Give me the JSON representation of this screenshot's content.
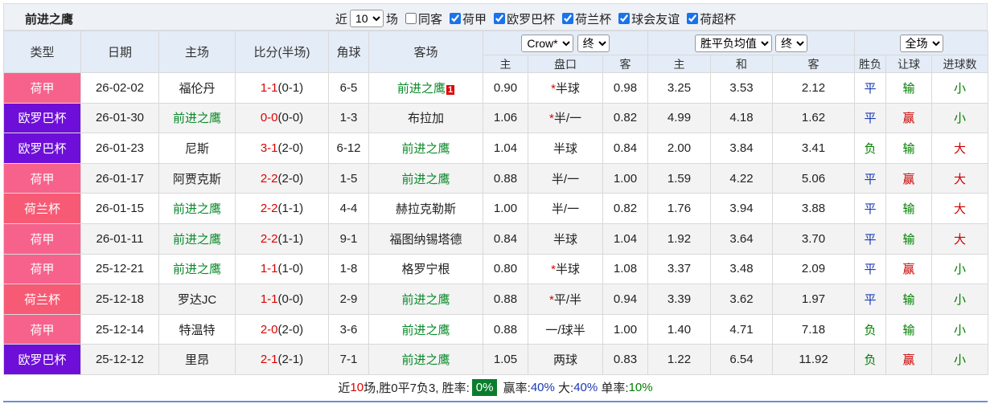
{
  "header": {
    "title": "前进之鹰"
  },
  "filters": {
    "count_prefix": "近",
    "count": "10",
    "count_suffix": "场",
    "checks": [
      {
        "label": "同客",
        "checked": false
      },
      {
        "label": "荷甲",
        "checked": true
      },
      {
        "label": "欧罗巴杯",
        "checked": true
      },
      {
        "label": "荷兰杯",
        "checked": true
      },
      {
        "label": "球会友谊",
        "checked": true
      },
      {
        "label": "荷超杯",
        "checked": true
      }
    ]
  },
  "table": {
    "columns": [
      "类型",
      "日期",
      "主场",
      "比分(半场)",
      "角球",
      "客场"
    ],
    "controls": {
      "company": "Crow*",
      "company_stage": "终",
      "average": "胜平负均值",
      "average_stage": "终",
      "scope": "全场"
    },
    "subcolumns": [
      "主",
      "盘口",
      "客",
      "主",
      "和",
      "客",
      "胜负",
      "让球",
      "进球数"
    ],
    "result_colors": {
      "平": "#1a3ab5",
      "负": "#008000",
      "胜": "#cc0000",
      "赢": "#cc0000",
      "输": "#008000",
      "大": "#cc0000",
      "小": "#008000"
    },
    "rows": [
      {
        "type": "荷甲",
        "color": "#f7628c",
        "date": "26-02-02",
        "home": "福伦丹",
        "score": "1-1",
        "half": "(0-1)",
        "corners": "6-5",
        "away": "前进之鹰",
        "red_card": "1",
        "odds_home": "0.90",
        "star": "*",
        "handicap": "半球",
        "odds_away": "0.98",
        "win": "3.25",
        "draw": "3.53",
        "lose": "2.12",
        "result": "平",
        "handicap_result": "输",
        "goals_result": "小"
      },
      {
        "type": "欧罗巴杯",
        "color": "#6d0fd8",
        "date": "26-01-30",
        "home": "前进之鹰",
        "score": "0-0",
        "half": "(0-0)",
        "corners": "1-3",
        "away": "布拉加",
        "odds_home": "1.06",
        "star": "*",
        "handicap": "半/一",
        "odds_away": "0.82",
        "win": "4.99",
        "draw": "4.18",
        "lose": "1.62",
        "result": "平",
        "handicap_result": "赢",
        "goals_result": "小"
      },
      {
        "type": "欧罗巴杯",
        "color": "#6d0fd8",
        "date": "26-01-23",
        "home": "尼斯",
        "score": "3-1",
        "half": "(2-0)",
        "corners": "6-12",
        "away": "前进之鹰",
        "odds_home": "1.04",
        "handicap": "半球",
        "odds_away": "0.84",
        "win": "2.00",
        "draw": "3.84",
        "lose": "3.41",
        "result": "负",
        "handicap_result": "输",
        "goals_result": "大"
      },
      {
        "type": "荷甲",
        "color": "#f7628c",
        "date": "26-01-17",
        "home": "阿贾克斯",
        "score": "2-2",
        "half": "(2-0)",
        "corners": "1-5",
        "away": "前进之鹰",
        "odds_home": "0.88",
        "handicap": "半/一",
        "odds_away": "1.00",
        "win": "1.59",
        "draw": "4.22",
        "lose": "5.06",
        "result": "平",
        "handicap_result": "赢",
        "goals_result": "大"
      },
      {
        "type": "荷兰杯",
        "color": "#f75a74",
        "date": "26-01-15",
        "home": "前进之鹰",
        "score": "2-2",
        "half": "(1-1)",
        "corners": "4-4",
        "away": "赫拉克勒斯",
        "odds_home": "1.00",
        "handicap": "半/一",
        "odds_away": "0.82",
        "win": "1.76",
        "draw": "3.94",
        "lose": "3.88",
        "result": "平",
        "handicap_result": "输",
        "goals_result": "大"
      },
      {
        "type": "荷甲",
        "color": "#f7628c",
        "date": "26-01-11",
        "home": "前进之鹰",
        "score": "2-2",
        "half": "(1-1)",
        "corners": "9-1",
        "away": "福图纳锡塔德",
        "odds_home": "0.84",
        "handicap": "半球",
        "odds_away": "1.04",
        "win": "1.92",
        "draw": "3.64",
        "lose": "3.70",
        "result": "平",
        "handicap_result": "输",
        "goals_result": "大"
      },
      {
        "type": "荷甲",
        "color": "#f7628c",
        "date": "25-12-21",
        "home": "前进之鹰",
        "score": "1-1",
        "half": "(1-0)",
        "corners": "1-8",
        "away": "格罗宁根",
        "odds_home": "0.80",
        "star": "*",
        "handicap": "半球",
        "odds_away": "1.08",
        "win": "3.37",
        "draw": "3.48",
        "lose": "2.09",
        "result": "平",
        "handicap_result": "赢",
        "goals_result": "小"
      },
      {
        "type": "荷兰杯",
        "color": "#f75a74",
        "date": "25-12-18",
        "home": "罗达JC",
        "score": "1-1",
        "half": "(0-0)",
        "corners": "2-9",
        "away": "前进之鹰",
        "odds_home": "0.88",
        "star": "*",
        "handicap": "平/半",
        "odds_away": "0.94",
        "win": "3.39",
        "draw": "3.62",
        "lose": "1.97",
        "result": "平",
        "handicap_result": "输",
        "goals_result": "小"
      },
      {
        "type": "荷甲",
        "color": "#f7628c",
        "date": "25-12-14",
        "home": "特温特",
        "score": "2-0",
        "half": "(2-0)",
        "corners": "3-6",
        "away": "前进之鹰",
        "odds_home": "0.88",
        "handicap": "一/球半",
        "odds_away": "1.00",
        "win": "1.40",
        "draw": "4.71",
        "lose": "7.18",
        "result": "负",
        "handicap_result": "输",
        "goals_result": "小"
      },
      {
        "type": "欧罗巴杯",
        "color": "#6d0fd8",
        "date": "25-12-12",
        "home": "里昂",
        "score": "2-1",
        "half": "(2-1)",
        "corners": "7-1",
        "away": "前进之鹰",
        "odds_home": "1.05",
        "handicap": "两球",
        "odds_away": "0.83",
        "win": "1.22",
        "draw": "6.54",
        "lose": "11.92",
        "result": "负",
        "handicap_result": "赢",
        "goals_result": "小"
      }
    ]
  },
  "footer": [
    {
      "text": "近"
    },
    {
      "text": "10",
      "color": "#dd0000"
    },
    {
      "text": "场,胜0平7负3, 胜率:"
    },
    {
      "text": "0%",
      "box": "#0a7d2c"
    },
    {
      "text": " 赢率:"
    },
    {
      "text": "40%",
      "color": "#1a3ab5"
    },
    {
      "text": " 大:"
    },
    {
      "text": "40%",
      "color": "#1a3ab5"
    },
    {
      "text": " 单率:"
    },
    {
      "text": "10%",
      "color": "#008000"
    }
  ]
}
